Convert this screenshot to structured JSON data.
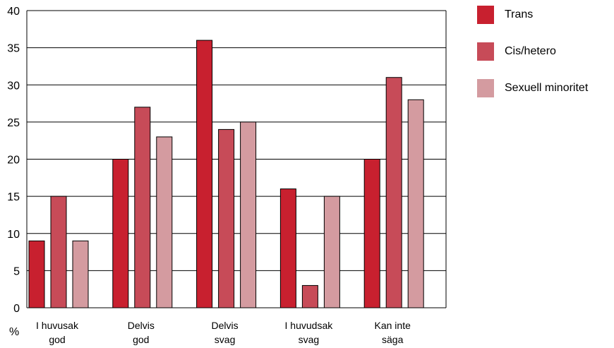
{
  "chart_data": {
    "type": "bar",
    "ylabel": "%",
    "ylim": [
      0,
      40
    ],
    "yticks": [
      0,
      5,
      10,
      15,
      20,
      25,
      30,
      35,
      40
    ],
    "grid": true,
    "legend_position": "top-right",
    "categories": [
      [
        "I huvusak",
        "god"
      ],
      [
        "Delvis",
        "god"
      ],
      [
        "Delvis",
        "svag"
      ],
      [
        "I huvudsak",
        "svag"
      ],
      [
        "Kan inte",
        "säga"
      ]
    ],
    "series": [
      {
        "name": "Trans",
        "color": "#c8202f",
        "values": [
          9,
          20,
          36,
          16,
          20
        ]
      },
      {
        "name": "Cis/hetero",
        "color": "#c74b58",
        "values": [
          15,
          27,
          24,
          3,
          31
        ]
      },
      {
        "name": "Sexuell minoritet",
        "color": "#d49ba0",
        "values": [
          9,
          23,
          25,
          15,
          28
        ]
      }
    ]
  }
}
